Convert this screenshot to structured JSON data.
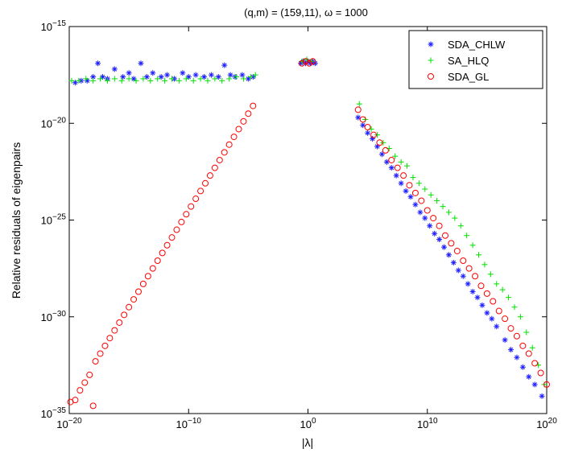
{
  "chart_data": {
    "type": "scatter",
    "title": "(q,m) = (159,11), ω = 1000",
    "xlabel": "|λ|",
    "ylabel": "Relative residuals of eigenpairs",
    "xscale": "log",
    "yscale": "log",
    "xlim_exp": [
      -20,
      20
    ],
    "ylim_exp": [
      -35,
      -15
    ],
    "x_ticks": [
      {
        "base": "10",
        "exp": "−20",
        "value_exp": -20
      },
      {
        "base": "10",
        "exp": "−10",
        "value_exp": -10
      },
      {
        "base": "10",
        "exp": "0",
        "value_exp": 0
      },
      {
        "base": "10",
        "exp": "10",
        "value_exp": 10
      },
      {
        "base": "10",
        "exp": "20",
        "value_exp": 20
      }
    ],
    "y_ticks": [
      {
        "base": "10",
        "exp": "−15",
        "value_exp": -15
      },
      {
        "base": "10",
        "exp": "−20",
        "value_exp": -20
      },
      {
        "base": "10",
        "exp": "−25",
        "value_exp": -25
      },
      {
        "base": "10",
        "exp": "−30",
        "value_exp": -30
      },
      {
        "base": "10",
        "exp": "−35",
        "value_exp": -35
      }
    ],
    "legend_position": "top-right",
    "series": [
      {
        "name": "SDA_CHLW",
        "marker": "asterisk",
        "color": "#1f1fff",
        "points_log10": [
          [
            -19.5,
            -17.9
          ],
          [
            -19,
            -17.8
          ],
          [
            -18.5,
            -17.8
          ],
          [
            -18,
            -17.6
          ],
          [
            -17.6,
            -16.9
          ],
          [
            -17.2,
            -17.6
          ],
          [
            -16.8,
            -17.7
          ],
          [
            -16.2,
            -17.2
          ],
          [
            -15.5,
            -17.6
          ],
          [
            -15,
            -17.4
          ],
          [
            -14.6,
            -17.7
          ],
          [
            -14,
            -16.9
          ],
          [
            -13.5,
            -17.6
          ],
          [
            -13,
            -17.4
          ],
          [
            -12.3,
            -17.6
          ],
          [
            -11.8,
            -17.5
          ],
          [
            -11.2,
            -17.7
          ],
          [
            -10.5,
            -17.4
          ],
          [
            -10,
            -17.6
          ],
          [
            -9.4,
            -17.5
          ],
          [
            -8.7,
            -17.6
          ],
          [
            -8.1,
            -17.5
          ],
          [
            -7.5,
            -17.6
          ],
          [
            -7,
            -17.0
          ],
          [
            -6.5,
            -17.5
          ],
          [
            -6.1,
            -17.6
          ],
          [
            -5.5,
            -17.5
          ],
          [
            -5,
            -17.7
          ],
          [
            -4.6,
            -17.6
          ],
          [
            -0.6,
            -16.9
          ],
          [
            -0.4,
            -16.8
          ],
          [
            -0.2,
            -16.9
          ],
          [
            0,
            -16.8
          ],
          [
            0.2,
            -16.9
          ],
          [
            0.4,
            -16.8
          ],
          [
            0.6,
            -16.9
          ],
          [
            4.2,
            -19.7
          ],
          [
            4.6,
            -20.1
          ],
          [
            5,
            -20.5
          ],
          [
            5.4,
            -20.8
          ],
          [
            5.8,
            -21.2
          ],
          [
            6.2,
            -21.6
          ],
          [
            6.6,
            -22
          ],
          [
            7,
            -22.3
          ],
          [
            7.4,
            -22.7
          ],
          [
            7.8,
            -23.1
          ],
          [
            8.2,
            -23.5
          ],
          [
            8.6,
            -23.8
          ],
          [
            9,
            -24.2
          ],
          [
            9.4,
            -24.6
          ],
          [
            9.8,
            -24.9
          ],
          [
            10.2,
            -25.3
          ],
          [
            10.6,
            -25.7
          ],
          [
            11,
            -26
          ],
          [
            11.4,
            -26.4
          ],
          [
            11.8,
            -26.8
          ],
          [
            12.2,
            -27.2
          ],
          [
            12.6,
            -27.6
          ],
          [
            13,
            -27.9
          ],
          [
            13.4,
            -28.3
          ],
          [
            13.8,
            -28.7
          ],
          [
            14.2,
            -29.0
          ],
          [
            14.6,
            -29.4
          ],
          [
            15,
            -29.8
          ],
          [
            15.4,
            -30.1
          ],
          [
            15.8,
            -30.5
          ],
          [
            16.5,
            -31.2
          ],
          [
            17,
            -31.7
          ],
          [
            17.5,
            -32.1
          ],
          [
            18,
            -32.6
          ],
          [
            18.5,
            -33.1
          ],
          [
            19,
            -33.5
          ],
          [
            19.6,
            -34.1
          ],
          [
            20.3,
            -34.8
          ]
        ]
      },
      {
        "name": "SA_HLQ",
        "marker": "plus",
        "color": "#00e000",
        "points_log10": [
          [
            -19.8,
            -17.8
          ],
          [
            -19.2,
            -17.8
          ],
          [
            -18.6,
            -17.7
          ],
          [
            -18,
            -17.8
          ],
          [
            -17.4,
            -17.7
          ],
          [
            -16.8,
            -17.8
          ],
          [
            -16.2,
            -17.7
          ],
          [
            -15.6,
            -17.8
          ],
          [
            -15,
            -17.7
          ],
          [
            -14.4,
            -17.8
          ],
          [
            -13.8,
            -17.7
          ],
          [
            -13.2,
            -17.8
          ],
          [
            -12.6,
            -17.7
          ],
          [
            -12,
            -17.8
          ],
          [
            -11.4,
            -17.7
          ],
          [
            -10.8,
            -17.8
          ],
          [
            -10.2,
            -17.7
          ],
          [
            -9.6,
            -17.8
          ],
          [
            -9,
            -17.7
          ],
          [
            -8.4,
            -17.8
          ],
          [
            -7.8,
            -17.7
          ],
          [
            -7.2,
            -17.8
          ],
          [
            -6.6,
            -17.7
          ],
          [
            -6,
            -17.6
          ],
          [
            -5.4,
            -17.7
          ],
          [
            -4.8,
            -17.6
          ],
          [
            -4.4,
            -17.5
          ],
          [
            -0.5,
            -16.8
          ],
          [
            -0.1,
            -16.7
          ],
          [
            0.3,
            -16.8
          ],
          [
            4.3,
            -19.0
          ],
          [
            4.8,
            -19.8
          ],
          [
            5.3,
            -20.3
          ],
          [
            5.8,
            -20.6
          ],
          [
            6.3,
            -21.0
          ],
          [
            6.8,
            -21.3
          ],
          [
            7.3,
            -21.7
          ],
          [
            7.8,
            -22.0
          ],
          [
            8.3,
            -22.2
          ],
          [
            8.8,
            -22.8
          ],
          [
            9.3,
            -23.1
          ],
          [
            9.8,
            -23.4
          ],
          [
            10.3,
            -23.7
          ],
          [
            10.8,
            -24.0
          ],
          [
            11.3,
            -24.3
          ],
          [
            11.8,
            -24.6
          ],
          [
            12.3,
            -24.9
          ],
          [
            12.8,
            -25.3
          ],
          [
            13.3,
            -25.8
          ],
          [
            13.8,
            -26.3
          ],
          [
            14.3,
            -26.8
          ],
          [
            14.8,
            -27.3
          ],
          [
            15.3,
            -27.8
          ],
          [
            15.8,
            -28.3
          ],
          [
            16.3,
            -28.6
          ],
          [
            16.8,
            -29.0
          ],
          [
            17.3,
            -29.5
          ],
          [
            17.8,
            -30.0
          ],
          [
            18.3,
            -30.8
          ],
          [
            18.8,
            -31.6
          ],
          [
            19.3,
            -32.5
          ],
          [
            19.8,
            -33.5
          ],
          [
            20.4,
            -34.5
          ]
        ]
      },
      {
        "name": "SDA_GL",
        "marker": "circle",
        "color": "#ff0000",
        "points_log10": [
          [
            -19.9,
            -34.4
          ],
          [
            -19.5,
            -34.3
          ],
          [
            -19.1,
            -33.8
          ],
          [
            -18.7,
            -33.4
          ],
          [
            -18.3,
            -33.0
          ],
          [
            -18,
            -34.6
          ],
          [
            -17.8,
            -32.3
          ],
          [
            -17.4,
            -31.9
          ],
          [
            -17.0,
            -31.5
          ],
          [
            -16.6,
            -31.1
          ],
          [
            -16.2,
            -30.7
          ],
          [
            -15.8,
            -30.3
          ],
          [
            -15.4,
            -29.9
          ],
          [
            -15.0,
            -29.5
          ],
          [
            -14.6,
            -29.1
          ],
          [
            -14.2,
            -28.7
          ],
          [
            -13.8,
            -28.3
          ],
          [
            -13.4,
            -27.9
          ],
          [
            -13.0,
            -27.5
          ],
          [
            -12.6,
            -27.1
          ],
          [
            -12.2,
            -26.7
          ],
          [
            -11.8,
            -26.3
          ],
          [
            -11.4,
            -25.9
          ],
          [
            -11.0,
            -25.5
          ],
          [
            -10.6,
            -25.1
          ],
          [
            -10.2,
            -24.7
          ],
          [
            -9.8,
            -24.3
          ],
          [
            -9.4,
            -23.9
          ],
          [
            -9.0,
            -23.5
          ],
          [
            -8.6,
            -23.1
          ],
          [
            -8.2,
            -22.7
          ],
          [
            -7.8,
            -22.3
          ],
          [
            -7.4,
            -21.9
          ],
          [
            -7.0,
            -21.5
          ],
          [
            -6.6,
            -21.1
          ],
          [
            -6.2,
            -20.7
          ],
          [
            -5.8,
            -20.3
          ],
          [
            -5.4,
            -19.9
          ],
          [
            -5.0,
            -19.5
          ],
          [
            -4.6,
            -19.1
          ],
          [
            -0.5,
            -16.9
          ],
          [
            -0.2,
            -16.8
          ],
          [
            0.1,
            -16.9
          ],
          [
            0.4,
            -16.8
          ],
          [
            4.2,
            -19.3
          ],
          [
            4.6,
            -19.8
          ],
          [
            5.0,
            -20.2
          ],
          [
            5.5,
            -20.6
          ],
          [
            6.0,
            -21.0
          ],
          [
            6.5,
            -21.4
          ],
          [
            7.0,
            -21.9
          ],
          [
            7.5,
            -22.3
          ],
          [
            8.0,
            -22.7
          ],
          [
            8.5,
            -23.2
          ],
          [
            9.0,
            -23.6
          ],
          [
            9.5,
            -24.0
          ],
          [
            10.0,
            -24.5
          ],
          [
            10.5,
            -24.9
          ],
          [
            11.0,
            -25.3
          ],
          [
            11.5,
            -25.8
          ],
          [
            12.0,
            -26.2
          ],
          [
            12.5,
            -26.6
          ],
          [
            13.0,
            -27.1
          ],
          [
            13.5,
            -27.5
          ],
          [
            14.0,
            -27.9
          ],
          [
            14.5,
            -28.4
          ],
          [
            15.0,
            -28.8
          ],
          [
            15.5,
            -29.2
          ],
          [
            16.0,
            -29.7
          ],
          [
            16.5,
            -30.1
          ],
          [
            17.0,
            -30.6
          ],
          [
            17.5,
            -31.0
          ],
          [
            18.0,
            -31.5
          ],
          [
            18.5,
            -31.9
          ],
          [
            19.0,
            -32.4
          ],
          [
            19.5,
            -32.9
          ],
          [
            20.0,
            -33.5
          ],
          [
            20.5,
            -34.2
          ]
        ]
      }
    ]
  }
}
